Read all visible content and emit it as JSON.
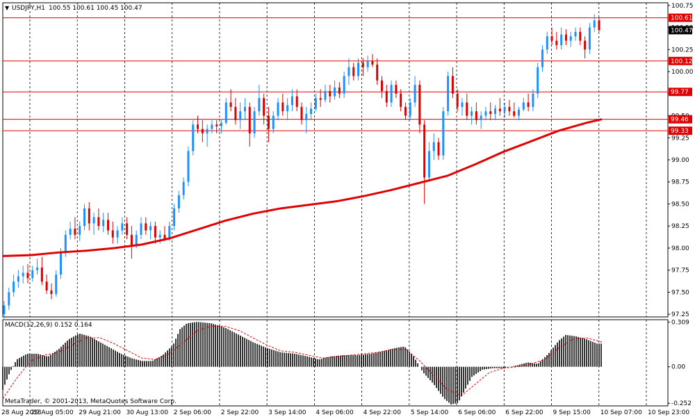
{
  "header": {
    "arrow": "▼",
    "symbol_label": "USDJPY,H1",
    "ohlc": "100.55 100.61 100.45 100.47"
  },
  "macd_header": "MACD(12,26,9) 0.152 0.164",
  "copyright": "MetaTrader, © 2001-2013, MetaQuotes Software Corp.",
  "colors": {
    "bull": "#1e90ff",
    "bear": "#dd0000",
    "ma": "#e00000",
    "level": "#e00000",
    "grid": "#000000",
    "macd_hist": "#000000",
    "macd_signal": "#e00000",
    "current_bg": "#000000"
  },
  "chart_data": [
    {
      "type": "candlestick",
      "price_axis_ticks": [
        "100.75",
        "100.50",
        "100.25",
        "100.00",
        "99.75",
        "99.50",
        "99.25",
        "99.00",
        "98.75",
        "98.50",
        "98.25",
        "98.00",
        "97.75",
        "97.50",
        "97.25"
      ],
      "time_axis_ticks": [
        "28 Aug 2013",
        "29 Aug 05:00",
        "29 Aug 21:00",
        "30 Aug 13:00",
        "2 Sep 06:00",
        "2 Sep 22:00",
        "3 Sep 14:00",
        "4 Sep 06:00",
        "4 Sep 22:00",
        "5 Sep 14:00",
        "6 Sep 06:00",
        "6 Sep 22:00",
        "9 Sep 15:00",
        "10 Sep 07:00",
        "10 Sep 23:00"
      ],
      "ylim": [
        97.22,
        100.78
      ],
      "horizontal_levels": [
        "100.61",
        "100.12",
        "99.77",
        "99.46",
        "99.33"
      ],
      "current_price": "100.47",
      "moving_average": [
        [
          0,
          97.91
        ],
        [
          40,
          97.92
        ],
        [
          80,
          97.95
        ],
        [
          120,
          97.97
        ],
        [
          160,
          98.0
        ],
        [
          200,
          98.04
        ],
        [
          240,
          98.11
        ],
        [
          280,
          98.21
        ],
        [
          320,
          98.31
        ],
        [
          360,
          98.39
        ],
        [
          400,
          98.45
        ],
        [
          440,
          98.49
        ],
        [
          480,
          98.53
        ],
        [
          520,
          98.59
        ],
        [
          560,
          98.66
        ],
        [
          600,
          98.74
        ],
        [
          640,
          98.82
        ],
        [
          680,
          98.95
        ],
        [
          720,
          99.09
        ],
        [
          760,
          99.21
        ],
        [
          800,
          99.33
        ],
        [
          840,
          99.42
        ],
        [
          862,
          99.46
        ]
      ],
      "candles": [
        [
          97.25,
          97.4,
          97.2,
          97.35
        ],
        [
          97.35,
          97.55,
          97.3,
          97.5
        ],
        [
          97.5,
          97.7,
          97.45,
          97.62
        ],
        [
          97.62,
          97.75,
          97.55,
          97.68
        ],
        [
          97.68,
          97.8,
          97.6,
          97.72
        ],
        [
          97.72,
          97.82,
          97.6,
          97.66
        ],
        [
          97.66,
          97.8,
          97.62,
          97.75
        ],
        [
          97.75,
          97.88,
          97.7,
          97.78
        ],
        [
          97.78,
          97.9,
          97.58,
          97.62
        ],
        [
          97.62,
          97.7,
          97.48,
          97.52
        ],
        [
          97.52,
          97.6,
          97.42,
          97.48
        ],
        [
          97.48,
          97.75,
          97.45,
          97.7
        ],
        [
          97.7,
          98.0,
          97.65,
          97.95
        ],
        [
          97.95,
          98.2,
          97.9,
          98.15
        ],
        [
          98.15,
          98.3,
          98.1,
          98.22
        ],
        [
          98.22,
          98.35,
          98.1,
          98.15
        ],
        [
          98.15,
          98.3,
          98.08,
          98.25
        ],
        [
          98.25,
          98.5,
          98.2,
          98.45
        ],
        [
          98.45,
          98.52,
          98.2,
          98.28
        ],
        [
          98.28,
          98.4,
          98.15,
          98.35
        ],
        [
          98.35,
          98.45,
          98.2,
          98.25
        ],
        [
          98.25,
          98.4,
          98.18,
          98.32
        ],
        [
          98.32,
          98.4,
          98.15,
          98.2
        ],
        [
          98.2,
          98.3,
          98.05,
          98.12
        ],
        [
          98.12,
          98.25,
          98.05,
          98.2
        ],
        [
          98.2,
          98.35,
          98.15,
          98.28
        ],
        [
          98.28,
          98.35,
          98.1,
          98.15
        ],
        [
          98.15,
          98.25,
          97.88,
          98.02
        ],
        [
          98.02,
          98.2,
          98.0,
          98.15
        ],
        [
          98.15,
          98.35,
          98.1,
          98.28
        ],
        [
          98.28,
          98.35,
          98.15,
          98.2
        ],
        [
          98.2,
          98.3,
          98.1,
          98.25
        ],
        [
          98.25,
          98.3,
          98.05,
          98.12
        ],
        [
          98.12,
          98.2,
          98.05,
          98.15
        ],
        [
          98.15,
          98.25,
          98.08,
          98.1
        ],
        [
          98.1,
          98.3,
          98.08,
          98.25
        ],
        [
          98.25,
          98.5,
          98.2,
          98.45
        ],
        [
          98.45,
          98.65,
          98.4,
          98.6
        ],
        [
          98.6,
          98.8,
          98.55,
          98.75
        ],
        [
          98.75,
          99.15,
          98.7,
          99.1
        ],
        [
          99.1,
          99.45,
          99.05,
          99.4
        ],
        [
          99.4,
          99.5,
          99.3,
          99.35
        ],
        [
          99.35,
          99.45,
          99.2,
          99.3
        ],
        [
          99.3,
          99.4,
          99.15,
          99.35
        ],
        [
          99.35,
          99.45,
          99.3,
          99.4
        ],
        [
          99.4,
          99.45,
          99.3,
          99.38
        ],
        [
          99.38,
          99.45,
          99.3,
          99.42
        ],
        [
          99.42,
          99.7,
          99.4,
          99.65
        ],
        [
          99.65,
          99.8,
          99.55,
          99.6
        ],
        [
          99.6,
          99.7,
          99.4,
          99.45
        ],
        [
          99.45,
          99.65,
          99.35,
          99.55
        ],
        [
          99.55,
          99.7,
          99.45,
          99.6
        ],
        [
          99.6,
          99.65,
          99.15,
          99.3
        ],
        [
          99.3,
          99.6,
          99.25,
          99.55
        ],
        [
          99.55,
          99.85,
          99.5,
          99.7
        ],
        [
          99.7,
          99.75,
          99.4,
          99.5
        ],
        [
          99.5,
          99.6,
          99.2,
          99.35
        ],
        [
          99.35,
          99.55,
          99.3,
          99.5
        ],
        [
          99.5,
          99.7,
          99.45,
          99.65
        ],
        [
          99.65,
          99.75,
          99.5,
          99.55
        ],
        [
          99.55,
          99.7,
          99.45,
          99.62
        ],
        [
          99.62,
          99.8,
          99.55,
          99.72
        ],
        [
          99.72,
          99.8,
          99.55,
          99.6
        ],
        [
          99.6,
          99.65,
          99.4,
          99.45
        ],
        [
          99.45,
          99.6,
          99.3,
          99.52
        ],
        [
          99.52,
          99.65,
          99.45,
          99.58
        ],
        [
          99.58,
          99.75,
          99.55,
          99.7
        ],
        [
          99.7,
          99.8,
          99.6,
          99.68
        ],
        [
          99.68,
          99.85,
          99.65,
          99.78
        ],
        [
          99.78,
          99.85,
          99.65,
          99.72
        ],
        [
          99.72,
          99.9,
          99.68,
          99.82
        ],
        [
          99.82,
          99.88,
          99.7,
          99.75
        ],
        [
          99.75,
          100.0,
          99.7,
          99.95
        ],
        [
          99.95,
          100.15,
          99.85,
          100.05
        ],
        [
          100.05,
          100.1,
          99.9,
          99.95
        ],
        [
          99.95,
          100.15,
          99.9,
          100.1
        ],
        [
          100.1,
          100.15,
          99.95,
          100.05
        ],
        [
          100.05,
          100.18,
          100.0,
          100.12
        ],
        [
          100.12,
          100.2,
          100.05,
          100.08
        ],
        [
          100.08,
          100.15,
          99.85,
          99.9
        ],
        [
          99.9,
          99.95,
          99.7,
          99.78
        ],
        [
          99.78,
          99.85,
          99.6,
          99.65
        ],
        [
          99.65,
          99.9,
          99.6,
          99.85
        ],
        [
          99.85,
          99.9,
          99.7,
          99.75
        ],
        [
          99.75,
          99.8,
          99.55,
          99.6
        ],
        [
          99.6,
          99.65,
          99.45,
          99.5
        ],
        [
          99.5,
          99.7,
          99.45,
          99.65
        ],
        [
          99.65,
          99.95,
          99.6,
          99.85
        ],
        [
          99.85,
          99.9,
          99.3,
          99.4
        ],
        [
          99.4,
          99.45,
          98.5,
          98.8
        ],
        [
          98.8,
          99.2,
          98.75,
          99.1
        ],
        [
          99.1,
          99.3,
          99.0,
          99.2
        ],
        [
          99.2,
          99.25,
          99.0,
          99.05
        ],
        [
          99.05,
          99.6,
          99.0,
          99.55
        ],
        [
          99.55,
          100.0,
          99.5,
          99.95
        ],
        [
          99.95,
          100.05,
          99.7,
          99.75
        ],
        [
          99.75,
          99.8,
          99.55,
          99.6
        ],
        [
          99.6,
          99.7,
          99.5,
          99.65
        ],
        [
          99.65,
          99.75,
          99.45,
          99.5
        ],
        [
          99.5,
          99.6,
          99.4,
          99.55
        ],
        [
          99.55,
          99.65,
          99.4,
          99.45
        ],
        [
          99.45,
          99.55,
          99.35,
          99.5
        ],
        [
          99.5,
          99.6,
          99.45,
          99.55
        ],
        [
          99.55,
          99.65,
          99.45,
          99.52
        ],
        [
          99.52,
          99.62,
          99.45,
          99.58
        ],
        [
          99.58,
          99.7,
          99.5,
          99.55
        ],
        [
          99.55,
          99.65,
          99.48,
          99.6
        ],
        [
          99.6,
          99.68,
          99.5,
          99.55
        ],
        [
          99.55,
          99.65,
          99.48,
          99.5
        ],
        [
          99.5,
          99.6,
          99.45,
          99.57
        ],
        [
          99.57,
          99.7,
          99.55,
          99.65
        ],
        [
          99.65,
          99.75,
          99.55,
          99.6
        ],
        [
          99.6,
          99.8,
          99.55,
          99.75
        ],
        [
          99.75,
          100.1,
          99.7,
          100.05
        ],
        [
          100.05,
          100.3,
          100.0,
          100.25
        ],
        [
          100.25,
          100.45,
          100.2,
          100.4
        ],
        [
          100.4,
          100.5,
          100.3,
          100.35
        ],
        [
          100.35,
          100.45,
          100.25,
          100.3
        ],
        [
          100.3,
          100.5,
          100.25,
          100.42
        ],
        [
          100.42,
          100.48,
          100.3,
          100.35
        ],
        [
          100.35,
          100.45,
          100.28,
          100.4
        ],
        [
          100.4,
          100.5,
          100.35,
          100.45
        ],
        [
          100.45,
          100.5,
          100.3,
          100.35
        ],
        [
          100.35,
          100.4,
          100.15,
          100.25
        ],
        [
          100.25,
          100.55,
          100.2,
          100.5
        ],
        [
          100.5,
          100.65,
          100.45,
          100.58
        ],
        [
          100.58,
          100.61,
          100.45,
          100.47
        ]
      ]
    },
    {
      "type": "histogram",
      "title": "MACD(12,26,9) 0.152 0.164",
      "macd_axis_ticks": [
        "0.309",
        "0.00",
        "-0.252"
      ],
      "ylim": [
        -0.27,
        0.325
      ],
      "histogram_points": [
        [
          0,
          -0.16
        ],
        [
          10,
          -0.04
        ],
        [
          20,
          0.05
        ],
        [
          35,
          0.09
        ],
        [
          50,
          0.09
        ],
        [
          65,
          0.07
        ],
        [
          80,
          0.12
        ],
        [
          95,
          0.19
        ],
        [
          110,
          0.23
        ],
        [
          125,
          0.21
        ],
        [
          140,
          0.17
        ],
        [
          155,
          0.13
        ],
        [
          170,
          0.09
        ],
        [
          185,
          0.06
        ],
        [
          200,
          0.04
        ],
        [
          215,
          0.04
        ],
        [
          230,
          0.08
        ],
        [
          245,
          0.15
        ],
        [
          255,
          0.26
        ],
        [
          265,
          0.3
        ],
        [
          280,
          0.31
        ],
        [
          300,
          0.3
        ],
        [
          320,
          0.27
        ],
        [
          340,
          0.22
        ],
        [
          360,
          0.17
        ],
        [
          380,
          0.13
        ],
        [
          400,
          0.1
        ],
        [
          420,
          0.09
        ],
        [
          440,
          0.07
        ],
        [
          455,
          0.05
        ],
        [
          470,
          0.07
        ],
        [
          490,
          0.08
        ],
        [
          510,
          0.08
        ],
        [
          530,
          0.09
        ],
        [
          550,
          0.11
        ],
        [
          565,
          0.13
        ],
        [
          578,
          0.14
        ],
        [
          590,
          0.08
        ],
        [
          605,
          -0.04
        ],
        [
          620,
          -0.12
        ],
        [
          635,
          -0.22
        ],
        [
          645,
          -0.26
        ],
        [
          655,
          -0.25
        ],
        [
          665,
          -0.16
        ],
        [
          675,
          -0.07
        ],
        [
          690,
          -0.02
        ],
        [
          705,
          -0.01
        ],
        [
          720,
          -0.01
        ],
        [
          740,
          0.01
        ],
        [
          755,
          0.03
        ],
        [
          770,
          0.02
        ],
        [
          785,
          0.09
        ],
        [
          800,
          0.18
        ],
        [
          810,
          0.22
        ],
        [
          825,
          0.21
        ],
        [
          840,
          0.19
        ],
        [
          855,
          0.16
        ],
        [
          862,
          0.16
        ]
      ],
      "signal_points": [
        [
          0,
          -0.22
        ],
        [
          20,
          -0.08
        ],
        [
          40,
          0.04
        ],
        [
          60,
          0.08
        ],
        [
          80,
          0.1
        ],
        [
          100,
          0.15
        ],
        [
          120,
          0.2
        ],
        [
          140,
          0.2
        ],
        [
          160,
          0.16
        ],
        [
          180,
          0.11
        ],
        [
          200,
          0.06
        ],
        [
          220,
          0.05
        ],
        [
          240,
          0.09
        ],
        [
          260,
          0.17
        ],
        [
          280,
          0.25
        ],
        [
          300,
          0.28
        ],
        [
          320,
          0.28
        ],
        [
          340,
          0.25
        ],
        [
          360,
          0.2
        ],
        [
          380,
          0.15
        ],
        [
          400,
          0.11
        ],
        [
          420,
          0.1
        ],
        [
          440,
          0.08
        ],
        [
          460,
          0.06
        ],
        [
          480,
          0.07
        ],
        [
          500,
          0.08
        ],
        [
          520,
          0.09
        ],
        [
          540,
          0.1
        ],
        [
          560,
          0.12
        ],
        [
          580,
          0.12
        ],
        [
          600,
          0.04
        ],
        [
          620,
          -0.06
        ],
        [
          640,
          -0.16
        ],
        [
          660,
          -0.2
        ],
        [
          680,
          -0.12
        ],
        [
          700,
          -0.04
        ],
        [
          720,
          -0.01
        ],
        [
          740,
          0.0
        ],
        [
          760,
          0.02
        ],
        [
          780,
          0.05
        ],
        [
          800,
          0.13
        ],
        [
          820,
          0.19
        ],
        [
          840,
          0.2
        ],
        [
          862,
          0.17
        ]
      ]
    }
  ]
}
